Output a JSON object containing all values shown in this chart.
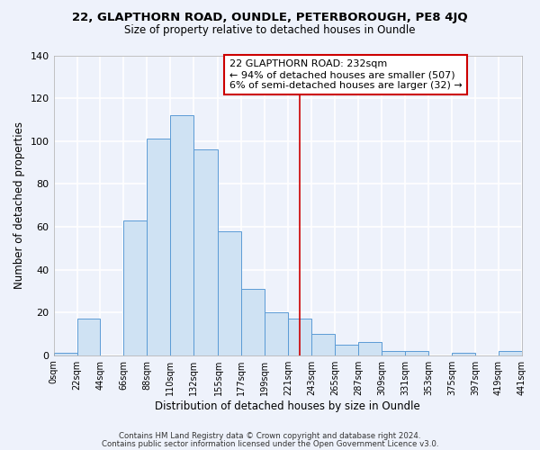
{
  "title_line1": "22, GLAPTHORN ROAD, OUNDLE, PETERBOROUGH, PE8 4JQ",
  "title_line2": "Size of property relative to detached houses in Oundle",
  "xlabel": "Distribution of detached houses by size in Oundle",
  "ylabel": "Number of detached properties",
  "bar_edges": [
    0,
    22,
    44,
    66,
    88,
    110,
    132,
    155,
    177,
    199,
    221,
    243,
    265,
    287,
    309,
    331,
    353,
    375,
    397,
    419,
    441
  ],
  "bar_heights": [
    1,
    17,
    0,
    63,
    101,
    112,
    96,
    58,
    31,
    20,
    17,
    10,
    5,
    6,
    2,
    2,
    0,
    1,
    0,
    2
  ],
  "bar_color": "#cfe2f3",
  "bar_edge_color": "#5b9bd5",
  "vline_x": 232,
  "vline_color": "#cc0000",
  "ylim": [
    0,
    140
  ],
  "yticks": [
    0,
    20,
    40,
    60,
    80,
    100,
    120,
    140
  ],
  "xtick_labels": [
    "0sqm",
    "22sqm",
    "44sqm",
    "66sqm",
    "88sqm",
    "110sqm",
    "132sqm",
    "155sqm",
    "177sqm",
    "199sqm",
    "221sqm",
    "243sqm",
    "265sqm",
    "287sqm",
    "309sqm",
    "331sqm",
    "353sqm",
    "375sqm",
    "397sqm",
    "419sqm",
    "441sqm"
  ],
  "annotation_title": "22 GLAPTHORN ROAD: 232sqm",
  "annotation_line2": "← 94% of detached houses are smaller (507)",
  "annotation_line3": "6% of semi-detached houses are larger (32) →",
  "annotation_box_color": "#ffffff",
  "annotation_border_color": "#cc0000",
  "footnote1": "Contains HM Land Registry data © Crown copyright and database right 2024.",
  "footnote2": "Contains public sector information licensed under the Open Government Licence v3.0.",
  "bg_color": "#eef2fb",
  "plot_bg_color": "#eef2fb",
  "grid_color": "#ffffff"
}
